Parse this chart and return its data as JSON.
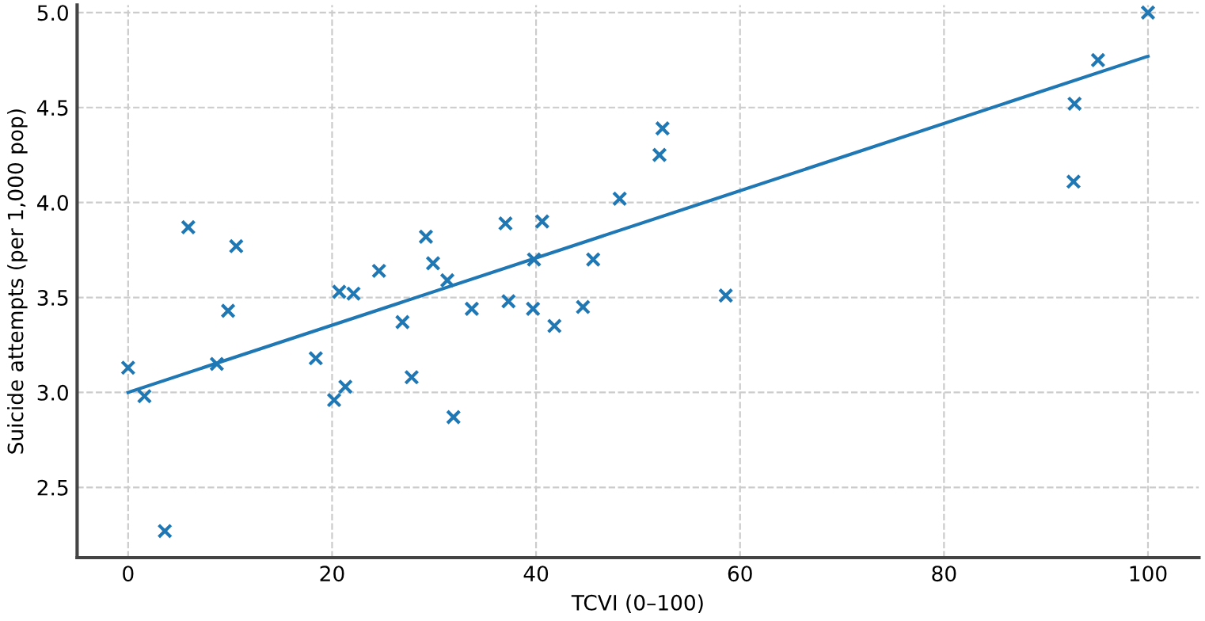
{
  "chart_data": {
    "type": "scatter",
    "xlabel": "TCVI (0–100)",
    "ylabel": "Suicide attempts (per 1,000 pop)",
    "xlim": [
      -5,
      105
    ],
    "ylim": [
      2.13,
      5.04
    ],
    "xticks": [
      0,
      20,
      40,
      60,
      80,
      100
    ],
    "yticks": [
      2.5,
      {
        "value": 3,
        "label": "3.0"
      },
      3.5,
      {
        "value": 4,
        "label": "4.0"
      },
      4.5,
      {
        "value": 5,
        "label": "5.0"
      }
    ],
    "grid": true,
    "series": [
      {
        "color": "#1f77b4",
        "marker": "cross",
        "x": [
          0,
          1.6,
          3.6,
          5.9,
          8.7,
          9.8,
          10.6,
          18.4,
          20.2,
          20.7,
          21.3,
          22.1,
          24.6,
          26.9,
          27.8,
          29.2,
          29.9,
          31.3,
          31.9,
          33.7,
          37.0,
          37.3,
          39.7,
          39.8,
          40.6,
          41.8,
          44.6,
          45.6,
          48.2,
          52.1,
          52.4,
          58.6,
          92.7,
          92.8,
          95.1,
          100
        ],
        "values": [
          3.13,
          2.98,
          2.27,
          3.87,
          3.15,
          3.43,
          3.77,
          3.18,
          2.96,
          3.53,
          3.03,
          3.52,
          3.64,
          3.37,
          3.08,
          3.82,
          3.68,
          3.59,
          2.87,
          3.44,
          3.89,
          3.48,
          3.44,
          3.7,
          3.9,
          3.35,
          3.45,
          3.7,
          4.02,
          4.25,
          4.39,
          3.51,
          4.11,
          4.52,
          4.75,
          5.0
        ]
      },
      {
        "type": "line",
        "color": "#1f77b4",
        "marker": "none",
        "line_style": "solid",
        "x": [
          0,
          100
        ],
        "values": [
          3.0,
          4.77
        ]
      }
    ]
  }
}
